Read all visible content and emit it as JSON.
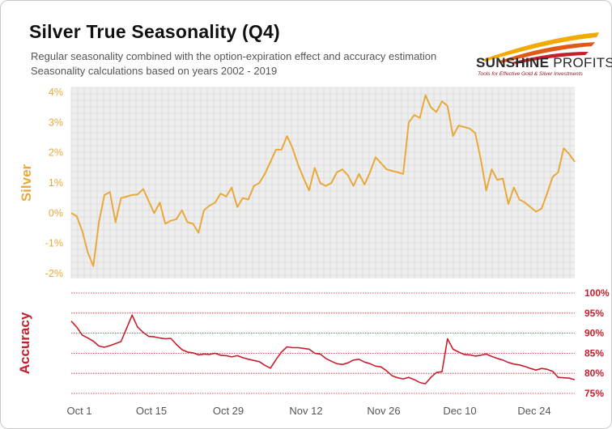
{
  "header": {
    "title": "Silver True Seasonality (Q4)",
    "subtitle_line1": "Regular seasonality combined with the option-expiration effect and accuracy estimation",
    "subtitle_line2": "Seasonality calculations based on years 2002 - 2019"
  },
  "logo": {
    "brand_sunshine": "SUNSHINE",
    "brand_profits": " PROFITS",
    "tagline": "Tools for Effective Gold & Silver Investments"
  },
  "colors": {
    "silver_line": "#e8a93a",
    "accuracy_line": "#c81e2b",
    "plot_background": "#eeeeee",
    "grid": "#d9d9d9",
    "accuracy_grid": "#c81e2b"
  },
  "chart_data": [
    {
      "type": "line",
      "ylabel": "Silver",
      "ylim": [
        -2,
        4
      ],
      "y_ticks": [
        "4%",
        "3%",
        "2%",
        "1%",
        "0%",
        "-1%",
        "-2%"
      ],
      "x_ticks": [
        "Oct 1",
        "Oct 15",
        "Oct 29",
        "Nov 12",
        "Nov 26",
        "Dec 10",
        "Dec 24"
      ],
      "grid": true,
      "series": [
        {
          "values": [
            0.0,
            -0.1,
            -0.6,
            -1.3,
            -1.75,
            -0.3,
            0.6,
            0.7,
            -0.3,
            0.5,
            0.55,
            0.6,
            0.62,
            0.8,
            0.4,
            0.0,
            0.35,
            -0.35,
            -0.25,
            -0.2,
            0.1,
            -0.3,
            -0.35,
            -0.65,
            0.1,
            0.25,
            0.35,
            0.65,
            0.55,
            0.85,
            0.2,
            0.5,
            0.45,
            0.9,
            1.0,
            1.3,
            1.7,
            2.1,
            2.1,
            2.55,
            2.15,
            1.6,
            1.15,
            0.75,
            1.5,
            1.0,
            0.9,
            1.0,
            1.35,
            1.45,
            1.25,
            0.9,
            1.3,
            0.95,
            1.35,
            1.85,
            1.65,
            1.45,
            1.4,
            1.35,
            1.3,
            3.0,
            3.25,
            3.15,
            3.9,
            3.5,
            3.35,
            3.7,
            3.55,
            2.55,
            2.9,
            2.85,
            2.8,
            2.65,
            1.8,
            0.75,
            1.45,
            1.1,
            1.15,
            0.3,
            0.85,
            0.45,
            0.35,
            0.2,
            0.05,
            0.15,
            0.65,
            1.2,
            1.35,
            2.15,
            1.95,
            1.7
          ]
        }
      ]
    },
    {
      "type": "line",
      "ylabel": "Accuracy",
      "ylim": [
        75,
        100
      ],
      "y_ticks": [
        "100%",
        "95%",
        "90%",
        "85%",
        "80%",
        "75%"
      ],
      "x_ticks": [
        "Oct 1",
        "Oct 15",
        "Oct 29",
        "Nov 12",
        "Nov 26",
        "Dec 10",
        "Dec 24"
      ],
      "grid": true,
      "series": [
        {
          "values": [
            93,
            91.5,
            89.5,
            88.8,
            88,
            86.8,
            86.5,
            86.9,
            87.4,
            87.9,
            91.2,
            94.5,
            91.5,
            90.2,
            89.2,
            89.1,
            88.8,
            88.6,
            88.7,
            87.2,
            85.9,
            85.3,
            85.1,
            84.6,
            84.8,
            84.7,
            85.0,
            84.5,
            84.4,
            84.1,
            84.4,
            83.9,
            83.5,
            83.2,
            82.9,
            82.0,
            81.3,
            83.4,
            85.3,
            86.6,
            86.4,
            86.4,
            86.2,
            86.0,
            85.0,
            84.8,
            83.7,
            83.0,
            82.4,
            82.2,
            82.6,
            83.3,
            83.5,
            82.8,
            82.4,
            81.8,
            81.6,
            80.6,
            79.4,
            78.9,
            78.6,
            79.0,
            78.4,
            77.7,
            77.4,
            79.0,
            80.2,
            80.4,
            88.6,
            86.0,
            85.3,
            84.7,
            84.6,
            84.3,
            84.5,
            84.8,
            84.2,
            83.7,
            83.3,
            82.7,
            82.3,
            82.1,
            81.7,
            81.2,
            80.8,
            81.2,
            81.0,
            80.5,
            79.0,
            78.9,
            78.8,
            78.4
          ]
        }
      ]
    }
  ]
}
